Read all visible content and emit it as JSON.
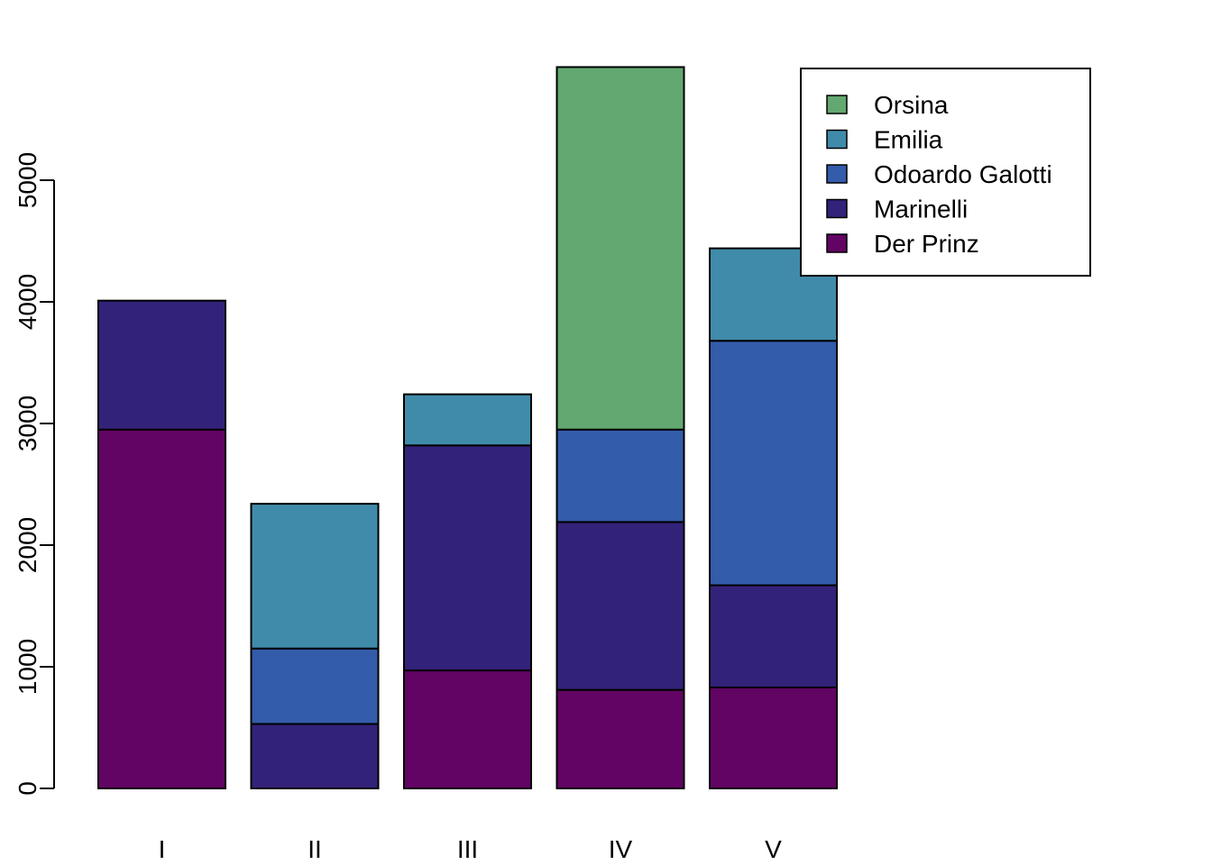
{
  "chart_data": {
    "type": "bar",
    "stacked": true,
    "categories": [
      "I",
      "II",
      "III",
      "IV",
      "V"
    ],
    "series": [
      {
        "name": "Der Prinz",
        "color": "#620463",
        "values": [
          2950,
          0,
          970,
          810,
          830
        ]
      },
      {
        "name": "Marinelli",
        "color": "#332279",
        "values": [
          1060,
          530,
          1850,
          1380,
          840
        ]
      },
      {
        "name": "Odoardo Galotti",
        "color": "#335CAA",
        "values": [
          0,
          620,
          0,
          760,
          2010
        ]
      },
      {
        "name": "Emilia",
        "color": "#418BAA",
        "values": [
          0,
          1190,
          420,
          0,
          760
        ]
      },
      {
        "name": "Orsina",
        "color": "#62A870",
        "values": [
          0,
          0,
          0,
          2980,
          0
        ]
      }
    ],
    "yticks": [
      0,
      1000,
      2000,
      3000,
      4000,
      5000
    ],
    "ylim": [
      0,
      5960
    ],
    "title": "",
    "xlabel": "",
    "ylabel": "",
    "legend": {
      "placement": "top-right",
      "order": [
        "Orsina",
        "Emilia",
        "Odoardo Galotti",
        "Marinelli",
        "Der Prinz"
      ]
    }
  }
}
